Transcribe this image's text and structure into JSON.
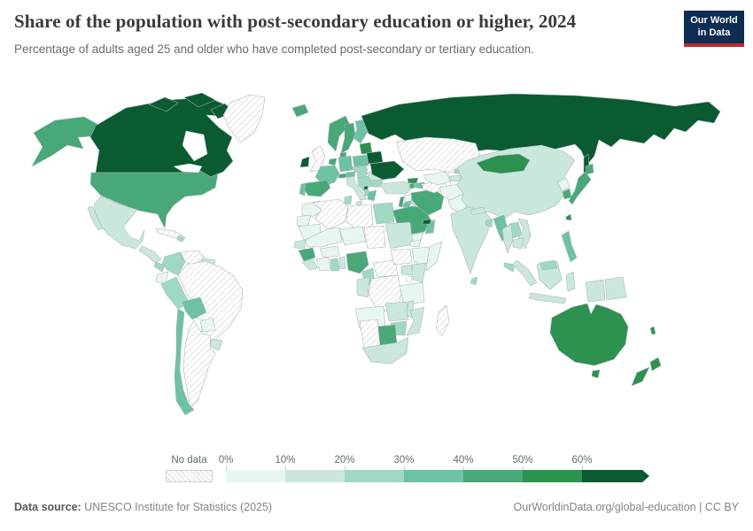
{
  "header": {
    "title": "Share of the population with post-secondary education or higher, 2024",
    "subtitle": "Percentage of adults aged 25 and older who have completed post-secondary or tertiary education.",
    "logo_line1": "Our World",
    "logo_line2": "in Data",
    "logo_bg_color": "#0d2d52",
    "logo_stripe_color": "#c2272d"
  },
  "legend": {
    "no_data_label": "No data",
    "tick_labels": [
      "0%",
      "10%",
      "20%",
      "30%",
      "40%",
      "50%",
      "60%"
    ],
    "bin_colors": [
      "#e8f6f2",
      "#c9e8db",
      "#9fd9c4",
      "#6ec2a3",
      "#49a878",
      "#2d9150",
      "#0a5b31"
    ],
    "no_data_stripe_color": "#d9d9d9"
  },
  "footer": {
    "source_label": "Data source:",
    "source_value": " UNESCO Institute for Statistics (2025)",
    "credit": "OurWorldinData.org/global-education | CC BY"
  },
  "chart_data": {
    "type": "heatmap",
    "subtype": "choropleth-world-map",
    "title": "Share of the population with post-secondary education or higher, 2024",
    "legend_bins": [
      "0-10%",
      "10-20%",
      "20-30%",
      "30-40%",
      "40-50%",
      "50-60%",
      "60%+",
      "No data"
    ],
    "note": "level is the legend bin index (0 = 0-10% ... 6 = 60%+); -1 = No data (hatched)"
  },
  "map": {
    "countries": [
      {
        "id": "canada",
        "name": "Canada",
        "level": 6
      },
      {
        "id": "united-states",
        "name": "United States",
        "level": 4
      },
      {
        "id": "greenland",
        "name": "Greenland",
        "level": -1
      },
      {
        "id": "mexico",
        "name": "Mexico",
        "level": 1
      },
      {
        "id": "cuba",
        "name": "Cuba",
        "level": -1
      },
      {
        "id": "hispaniola",
        "name": "Dominican Republic",
        "level": 2
      },
      {
        "id": "central-america",
        "name": "Central America",
        "level": 1
      },
      {
        "id": "costa-rica-panama",
        "name": "Costa Rica / Panama",
        "level": 2
      },
      {
        "id": "colombia",
        "name": "Colombia",
        "level": 2
      },
      {
        "id": "venezuela",
        "name": "Venezuela",
        "level": -1
      },
      {
        "id": "guyana",
        "name": "Guyana / Suriname",
        "level": 1
      },
      {
        "id": "ecuador",
        "name": "Ecuador",
        "level": 0
      },
      {
        "id": "peru",
        "name": "Peru",
        "level": 2
      },
      {
        "id": "bolivia",
        "name": "Bolivia",
        "level": 3
      },
      {
        "id": "brazil",
        "name": "Brazil",
        "level": -1
      },
      {
        "id": "paraguay",
        "name": "Paraguay",
        "level": 0
      },
      {
        "id": "uruguay",
        "name": "Uruguay",
        "level": 1
      },
      {
        "id": "argentina",
        "name": "Argentina",
        "level": -1
      },
      {
        "id": "chile",
        "name": "Chile",
        "level": 3
      },
      {
        "id": "iceland",
        "name": "Iceland",
        "level": 4
      },
      {
        "id": "norway",
        "name": "Norway",
        "level": 4
      },
      {
        "id": "sweden",
        "name": "Sweden",
        "level": 4
      },
      {
        "id": "finland",
        "name": "Finland",
        "level": 3
      },
      {
        "id": "denmark",
        "name": "Denmark",
        "level": 4
      },
      {
        "id": "united-kingdom",
        "name": "United Kingdom",
        "level": -1
      },
      {
        "id": "ireland",
        "name": "Ireland",
        "level": 6
      },
      {
        "id": "benelux",
        "name": "Netherlands / Belgium",
        "level": 4
      },
      {
        "id": "germany",
        "name": "Germany",
        "level": 3
      },
      {
        "id": "france",
        "name": "France",
        "level": 3
      },
      {
        "id": "spain",
        "name": "Spain",
        "level": 4
      },
      {
        "id": "portugal",
        "name": "Portugal",
        "level": 3
      },
      {
        "id": "switzerland",
        "name": "Switzerland",
        "level": 4
      },
      {
        "id": "austria",
        "name": "Austria",
        "level": 3
      },
      {
        "id": "italy",
        "name": "Italy",
        "level": 1
      },
      {
        "id": "czechia-slovakia",
        "name": "Czechia / Slovakia",
        "level": 2
      },
      {
        "id": "poland",
        "name": "Poland",
        "level": 3
      },
      {
        "id": "hungary",
        "name": "Hungary",
        "level": 2
      },
      {
        "id": "balkans",
        "name": "Croatia / Serbia",
        "level": 2
      },
      {
        "id": "montenegro",
        "name": "Montenegro",
        "level": 6
      },
      {
        "id": "albania",
        "name": "Albania",
        "level": 2
      },
      {
        "id": "greece",
        "name": "Greece",
        "level": 3
      },
      {
        "id": "romania",
        "name": "Romania",
        "level": 1
      },
      {
        "id": "bulgaria",
        "name": "Bulgaria",
        "level": 2
      },
      {
        "id": "baltics",
        "name": "Baltic states",
        "level": 5
      },
      {
        "id": "belarus",
        "name": "Belarus",
        "level": 6
      },
      {
        "id": "ukraine",
        "name": "Ukraine",
        "level": 6
      },
      {
        "id": "russia",
        "name": "Russia",
        "level": 6
      },
      {
        "id": "turkey",
        "name": "Turkey",
        "level": 1
      },
      {
        "id": "georgia",
        "name": "Georgia",
        "level": 5
      },
      {
        "id": "armenia",
        "name": "Armenia",
        "level": 4
      },
      {
        "id": "azerbaijan",
        "name": "Azerbaijan",
        "level": 3
      },
      {
        "id": "syria",
        "name": "Syria",
        "level": 0
      },
      {
        "id": "israel",
        "name": "Israel",
        "level": 4
      },
      {
        "id": "jordan",
        "name": "Jordan",
        "level": 3
      },
      {
        "id": "iraq",
        "name": "Iraq",
        "level": 1
      },
      {
        "id": "saudi-arabia",
        "name": "Saudi Arabia",
        "level": 4
      },
      {
        "id": "yemen",
        "name": "Yemen",
        "level": 0
      },
      {
        "id": "oman",
        "name": "Oman",
        "level": 3
      },
      {
        "id": "uae",
        "name": "United Arab Emirates",
        "level": 6
      },
      {
        "id": "iran",
        "name": "Iran",
        "level": 4
      },
      {
        "id": "turkmenistan",
        "name": "Turkmenistan",
        "level": -1
      },
      {
        "id": "uzbekistan",
        "name": "Uzbekistan",
        "level": 0
      },
      {
        "id": "kazakhstan",
        "name": "Kazakhstan",
        "level": -1
      },
      {
        "id": "kyrgyzstan",
        "name": "Kyrgyzstan",
        "level": 2
      },
      {
        "id": "tajikistan",
        "name": "Tajikistan",
        "level": 1
      },
      {
        "id": "afghanistan",
        "name": "Afghanistan",
        "level": 0
      },
      {
        "id": "pakistan",
        "name": "Pakistan",
        "level": 0
      },
      {
        "id": "india",
        "name": "India",
        "level": 1
      },
      {
        "id": "sri-lanka",
        "name": "Sri Lanka",
        "level": 2
      },
      {
        "id": "nepal",
        "name": "Nepal",
        "level": 1
      },
      {
        "id": "bangladesh",
        "name": "Bangladesh",
        "level": 2
      },
      {
        "id": "china",
        "name": "China",
        "level": 1
      },
      {
        "id": "mongolia",
        "name": "Mongolia",
        "level": 5
      },
      {
        "id": "north-korea",
        "name": "North Korea",
        "level": 0
      },
      {
        "id": "south-korea",
        "name": "South Korea",
        "level": 4
      },
      {
        "id": "japan",
        "name": "Japan",
        "level": 4
      },
      {
        "id": "taiwan",
        "name": "Taiwan",
        "level": 5
      },
      {
        "id": "myanmar",
        "name": "Myanmar",
        "level": 3
      },
      {
        "id": "thailand",
        "name": "Thailand",
        "level": 1
      },
      {
        "id": "laos",
        "name": "Laos",
        "level": 2
      },
      {
        "id": "vietnam",
        "name": "Vietnam",
        "level": 1
      },
      {
        "id": "cambodia",
        "name": "Cambodia",
        "level": 1
      },
      {
        "id": "malaysia",
        "name": "Malaysia",
        "level": 2
      },
      {
        "id": "indonesia",
        "name": "Indonesia",
        "level": 1
      },
      {
        "id": "papua-new-guinea",
        "name": "Papua New Guinea",
        "level": 1
      },
      {
        "id": "philippines",
        "name": "Philippines",
        "level": 3
      },
      {
        "id": "australia",
        "name": "Australia",
        "level": 5
      },
      {
        "id": "new-zealand",
        "name": "New Zealand",
        "level": 5
      },
      {
        "id": "new-caledonia",
        "name": "New Caledonia",
        "level": 5
      },
      {
        "id": "morocco",
        "name": "Morocco",
        "level": 0
      },
      {
        "id": "western-sahara",
        "name": "Western Sahara",
        "level": 0
      },
      {
        "id": "algeria",
        "name": "Algeria",
        "level": -1
      },
      {
        "id": "tunisia",
        "name": "Tunisia",
        "level": 2
      },
      {
        "id": "libya",
        "name": "Libya",
        "level": -1
      },
      {
        "id": "egypt",
        "name": "Egypt",
        "level": 2
      },
      {
        "id": "mauritania",
        "name": "Mauritania",
        "level": 0
      },
      {
        "id": "mali",
        "name": "Mali",
        "level": 0
      },
      {
        "id": "niger",
        "name": "Niger",
        "level": 0
      },
      {
        "id": "chad",
        "name": "Chad",
        "level": -1
      },
      {
        "id": "sudan",
        "name": "Sudan",
        "level": 1
      },
      {
        "id": "eritrea",
        "name": "Eritrea",
        "level": 0
      },
      {
        "id": "senegal",
        "name": "Senegal",
        "level": 1
      },
      {
        "id": "guinea",
        "name": "Guinea",
        "level": 4
      },
      {
        "id": "sierra-leone-liberia",
        "name": "Sierra Leone / Liberia",
        "level": 1
      },
      {
        "id": "ivory-coast",
        "name": "Cote d'Ivoire",
        "level": 0
      },
      {
        "id": "ghana",
        "name": "Ghana",
        "level": 2
      },
      {
        "id": "burkina-faso",
        "name": "Burkina Faso",
        "level": 0
      },
      {
        "id": "togo-benin",
        "name": "Togo / Benin",
        "level": 1
      },
      {
        "id": "nigeria",
        "name": "Nigeria",
        "level": 4
      },
      {
        "id": "cameroon",
        "name": "Cameroon",
        "level": 2
      },
      {
        "id": "central-african-republic",
        "name": "Central African Republic",
        "level": -1
      },
      {
        "id": "south-sudan",
        "name": "South Sudan",
        "level": -1
      },
      {
        "id": "ethiopia",
        "name": "Ethiopia",
        "level": 0
      },
      {
        "id": "somalia",
        "name": "Somalia",
        "level": 0
      },
      {
        "id": "uganda",
        "name": "Uganda",
        "level": 1
      },
      {
        "id": "kenya",
        "name": "Kenya",
        "level": 1
      },
      {
        "id": "drc",
        "name": "Democratic Republic of Congo",
        "level": -1
      },
      {
        "id": "congo-gabon",
        "name": "Congo / Gabon",
        "level": 1
      },
      {
        "id": "tanzania",
        "name": "Tanzania",
        "level": 0
      },
      {
        "id": "angola",
        "name": "Angola",
        "level": 0
      },
      {
        "id": "zambia",
        "name": "Zambia",
        "level": 1
      },
      {
        "id": "malawi",
        "name": "Malawi",
        "level": 1
      },
      {
        "id": "mozambique",
        "name": "Mozambique",
        "level": 1
      },
      {
        "id": "zimbabwe",
        "name": "Zimbabwe",
        "level": 2
      },
      {
        "id": "botswana",
        "name": "Botswana",
        "level": 4
      },
      {
        "id": "namibia",
        "name": "Namibia",
        "level": -1
      },
      {
        "id": "south-africa",
        "name": "South Africa",
        "level": 1
      },
      {
        "id": "madagascar",
        "name": "Madagascar",
        "level": -1
      }
    ]
  }
}
